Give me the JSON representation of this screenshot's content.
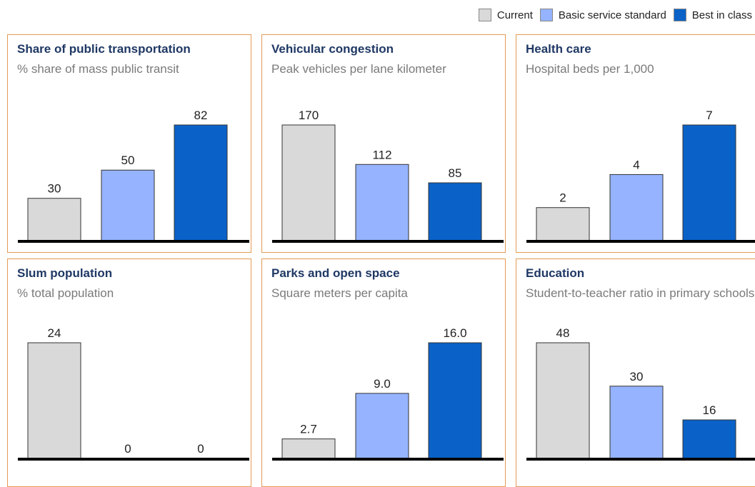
{
  "legend": [
    {
      "name": "Current",
      "color": "#d9d9d9"
    },
    {
      "name": "Basic service standard",
      "color": "#95b3ff"
    },
    {
      "name": "Best in class",
      "color": "#0a62c8"
    }
  ],
  "chart_data": [
    {
      "type": "bar",
      "title": "Share of public transportation",
      "subtitle": "% share of mass public transit",
      "values": [
        30,
        50,
        82
      ]
    },
    {
      "type": "bar",
      "title": "Vehicular congestion",
      "subtitle": "Peak vehicles per lane kilometer",
      "values": [
        170,
        112,
        85
      ]
    },
    {
      "type": "bar",
      "title": "Health care",
      "subtitle": "Hospital beds per 1,000",
      "values": [
        2,
        4,
        7
      ]
    },
    {
      "type": "bar",
      "title": "Slum population",
      "subtitle": "% total population",
      "values": [
        24,
        0,
        0
      ]
    },
    {
      "type": "bar",
      "title": "Parks and open space",
      "subtitle": "Square meters per capita",
      "values": [
        2.7,
        9,
        16
      ],
      "value_labels": [
        "2.7",
        "9.0",
        "16.0"
      ]
    },
    {
      "type": "bar",
      "title": "Education",
      "subtitle": "Student-to-teacher ratio in primary schools",
      "values": [
        48,
        30,
        16
      ]
    }
  ]
}
